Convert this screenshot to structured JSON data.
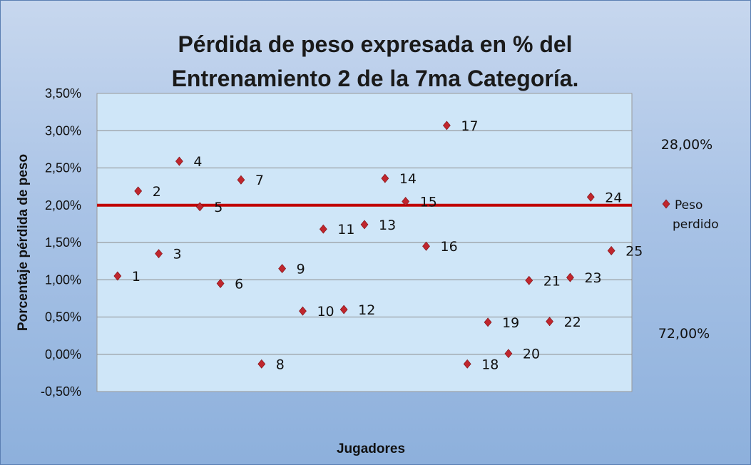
{
  "chart_data": {
    "type": "scatter",
    "title": "Pérdida de peso expresada en % del Entrenamiento 2 de la 7ma Categoría.",
    "title_lines": [
      "Pérdida de peso expresada en % del",
      "Entrenamiento 2 de la 7ma Categoría."
    ],
    "xlabel": "Jugadores",
    "ylabel": "Porcentaje pérdida de peso",
    "ylim": [
      -0.5,
      3.5
    ],
    "yticks": [
      "-0,50%",
      "0,00%",
      "0,50%",
      "1,00%",
      "1,50%",
      "2,00%",
      "2,50%",
      "3,00%",
      "3,50%"
    ],
    "ytick_values": [
      -0.5,
      0,
      0.5,
      1.0,
      1.5,
      2.0,
      2.5,
      3.0,
      3.5
    ],
    "grid": true,
    "series": [
      {
        "name": "Peso perdido",
        "color": "#c0262d",
        "marker": "diamond",
        "x": [
          1,
          2,
          3,
          4,
          5,
          6,
          7,
          8,
          9,
          10,
          11,
          12,
          13,
          14,
          15,
          16,
          17,
          18,
          19,
          20,
          21,
          22,
          23,
          24,
          25
        ],
        "y": [
          1.05,
          2.19,
          1.35,
          2.59,
          1.98,
          0.95,
          2.34,
          -0.13,
          1.15,
          0.58,
          1.68,
          0.6,
          1.74,
          2.36,
          2.05,
          1.45,
          3.07,
          -0.13,
          0.43,
          0.01,
          0.99,
          0.44,
          1.03,
          2.11,
          1.39
        ],
        "labels": [
          "1",
          "2",
          "3",
          "4",
          "5",
          "6",
          "7",
          "8",
          "9",
          "10",
          "11",
          "12",
          "13",
          "14",
          "15",
          "16",
          "17",
          "18",
          "19",
          "20",
          "21",
          "22",
          "23",
          "24",
          "25"
        ]
      }
    ],
    "reference_line": {
      "y": 2.0,
      "color": "#c00000"
    },
    "annotations": [
      "28,00%",
      "72,00%"
    ],
    "legend": {
      "position": "right",
      "label_lines": [
        "Peso",
        "perdido"
      ]
    },
    "colors": {
      "plot_background": "#cfe6f8",
      "gridline": "#8a8a8a",
      "marker": "#c0262d",
      "reference_line": "#c00000"
    }
  }
}
